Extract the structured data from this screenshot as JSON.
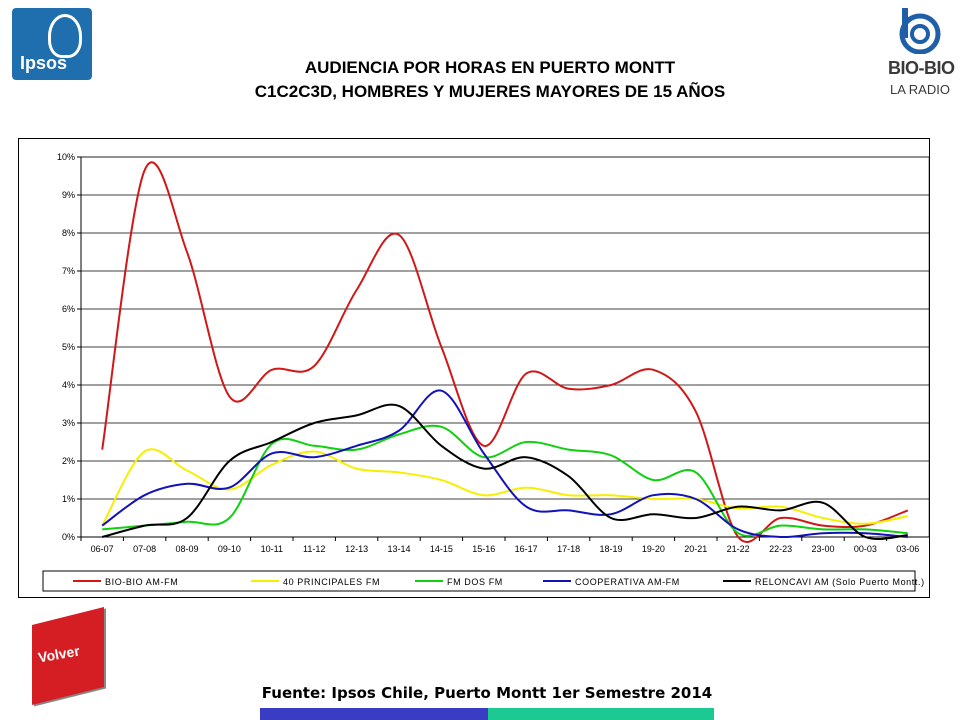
{
  "header": {
    "title_line1": "AUDIENCIA POR HORAS EN PUERTO MONTT",
    "title_line2": "C1C2C3D, HOMBRES Y MUJERES MAYORES DE 15 AÑOS",
    "ipsos_logo_text": "Ipsos",
    "biobio_logo_text": "BIO-BIO",
    "biobio_logo_sub": "LA RADIO"
  },
  "footer": {
    "source": "Fuente: Ipsos Chile, Puerto Montt 1er Semestre 2014",
    "volver_label": "Volver",
    "bar_colors": [
      "#3a3cc4",
      "#1cc992"
    ]
  },
  "chart_data": {
    "type": "line",
    "title": "",
    "xlabel": "",
    "ylabel": "",
    "categories": [
      "06-07",
      "07-08",
      "08-09",
      "09-10",
      "10-11",
      "11-12",
      "12-13",
      "13-14",
      "14-15",
      "15-16",
      "16-17",
      "17-18",
      "18-19",
      "19-20",
      "20-21",
      "21-22",
      "22-23",
      "23-00",
      "00-03",
      "03-06"
    ],
    "ylim": [
      0,
      10
    ],
    "yticks": [
      "0%",
      "1%",
      "2%",
      "3%",
      "4%",
      "5%",
      "6%",
      "7%",
      "8%",
      "9%",
      "10%"
    ],
    "grid": true,
    "legend_position": "bottom",
    "series": [
      {
        "name": "BIO-BIO AM-FM",
        "color": "#d01818",
        "values": [
          2.3,
          9.65,
          7.5,
          3.7,
          4.4,
          4.5,
          6.5,
          7.95,
          5.0,
          2.4,
          4.3,
          3.9,
          4.0,
          4.4,
          3.3,
          0.0,
          0.5,
          0.3,
          0.3,
          0.7
        ]
      },
      {
        "name": "40 PRINCIPALES FM",
        "color": "#f5f000",
        "values": [
          0.3,
          2.25,
          1.75,
          1.25,
          1.9,
          2.25,
          1.8,
          1.7,
          1.5,
          1.1,
          1.3,
          1.1,
          1.1,
          1.0,
          1.0,
          0.75,
          0.8,
          0.5,
          0.35,
          0.55
        ]
      },
      {
        "name": "FM DOS FM",
        "color": "#10d010",
        "values": [
          0.2,
          0.3,
          0.4,
          0.5,
          2.45,
          2.4,
          2.3,
          2.7,
          2.9,
          2.1,
          2.5,
          2.3,
          2.15,
          1.5,
          1.7,
          0.1,
          0.3,
          0.2,
          0.2,
          0.1
        ]
      },
      {
        "name": "COOPERATIVA AM-FM",
        "color": "#1212b8",
        "values": [
          0.3,
          1.1,
          1.4,
          1.3,
          2.2,
          2.1,
          2.4,
          2.8,
          3.85,
          2.2,
          0.8,
          0.7,
          0.6,
          1.1,
          1.0,
          0.2,
          0.0,
          0.1,
          0.1,
          0.0
        ]
      },
      {
        "name": "RELONCAVI AM (Solo Puerto Montt.)",
        "color": "#000000",
        "values": [
          0.0,
          0.3,
          0.5,
          2.0,
          2.5,
          3.0,
          3.2,
          3.45,
          2.4,
          1.8,
          2.1,
          1.6,
          0.5,
          0.6,
          0.5,
          0.8,
          0.7,
          0.9,
          0.0,
          0.05
        ]
      }
    ]
  }
}
